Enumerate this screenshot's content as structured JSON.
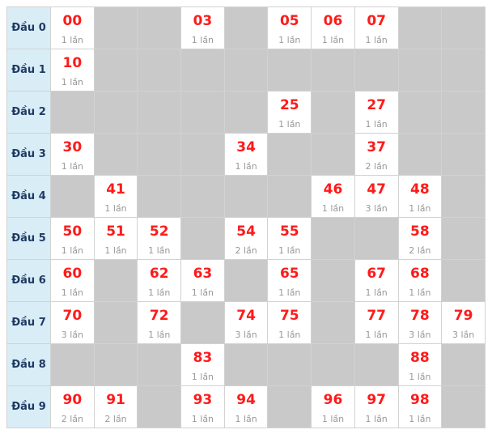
{
  "colors": {
    "number_red": "#ff1a1a",
    "label_bg": "#d9edf7",
    "label_text": "#1f3b63",
    "empty_bg": "#c9c9c9",
    "border": "#d2d2d2",
    "count_text": "#999999",
    "cell_bg": "#ffffff"
  },
  "chart_data": {
    "type": "table",
    "num_columns": 10,
    "row_labels": [
      "Đầu 0",
      "Đầu 1",
      "Đầu 2",
      "Đầu 3",
      "Đầu 4",
      "Đầu 5",
      "Đầu 6",
      "Đầu 7",
      "Đầu 8",
      "Đầu 9"
    ],
    "rows": [
      {
        "label": "Đầu 0",
        "cells": [
          {
            "digit": 0,
            "number": "00",
            "count": "1 lần"
          },
          {
            "digit": 3,
            "number": "03",
            "count": "1 lần"
          },
          {
            "digit": 5,
            "number": "05",
            "count": "1 lần"
          },
          {
            "digit": 6,
            "number": "06",
            "count": "1 lần"
          },
          {
            "digit": 7,
            "number": "07",
            "count": "1 lần"
          }
        ]
      },
      {
        "label": "Đầu 1",
        "cells": [
          {
            "digit": 0,
            "number": "10",
            "count": "1 lần"
          }
        ]
      },
      {
        "label": "Đầu 2",
        "cells": [
          {
            "digit": 5,
            "number": "25",
            "count": "1 lần"
          },
          {
            "digit": 7,
            "number": "27",
            "count": "1 lần"
          }
        ]
      },
      {
        "label": "Đầu 3",
        "cells": [
          {
            "digit": 0,
            "number": "30",
            "count": "1 lần"
          },
          {
            "digit": 4,
            "number": "34",
            "count": "1 lần"
          },
          {
            "digit": 7,
            "number": "37",
            "count": "2 lần"
          }
        ]
      },
      {
        "label": "Đầu 4",
        "cells": [
          {
            "digit": 1,
            "number": "41",
            "count": "1 lần"
          },
          {
            "digit": 6,
            "number": "46",
            "count": "1 lần"
          },
          {
            "digit": 7,
            "number": "47",
            "count": "3 lần"
          },
          {
            "digit": 8,
            "number": "48",
            "count": "1 lần"
          }
        ]
      },
      {
        "label": "Đầu 5",
        "cells": [
          {
            "digit": 0,
            "number": "50",
            "count": "1 lần"
          },
          {
            "digit": 1,
            "number": "51",
            "count": "1 lần"
          },
          {
            "digit": 2,
            "number": "52",
            "count": "1 lần"
          },
          {
            "digit": 4,
            "number": "54",
            "count": "2 lần"
          },
          {
            "digit": 5,
            "number": "55",
            "count": "1 lần"
          },
          {
            "digit": 8,
            "number": "58",
            "count": "2 lần"
          }
        ]
      },
      {
        "label": "Đầu 6",
        "cells": [
          {
            "digit": 0,
            "number": "60",
            "count": "1 lần"
          },
          {
            "digit": 2,
            "number": "62",
            "count": "1 lần"
          },
          {
            "digit": 3,
            "number": "63",
            "count": "1 lần"
          },
          {
            "digit": 5,
            "number": "65",
            "count": "1 lần"
          },
          {
            "digit": 7,
            "number": "67",
            "count": "1 lần"
          },
          {
            "digit": 8,
            "number": "68",
            "count": "1 lần"
          }
        ]
      },
      {
        "label": "Đầu 7",
        "cells": [
          {
            "digit": 0,
            "number": "70",
            "count": "3 lần"
          },
          {
            "digit": 2,
            "number": "72",
            "count": "1 lần"
          },
          {
            "digit": 4,
            "number": "74",
            "count": "3 lần"
          },
          {
            "digit": 5,
            "number": "75",
            "count": "1 lần"
          },
          {
            "digit": 7,
            "number": "77",
            "count": "1 lần"
          },
          {
            "digit": 8,
            "number": "78",
            "count": "3 lần"
          },
          {
            "digit": 9,
            "number": "79",
            "count": "3 lần"
          }
        ]
      },
      {
        "label": "Đầu 8",
        "cells": [
          {
            "digit": 3,
            "number": "83",
            "count": "1 lần"
          },
          {
            "digit": 8,
            "number": "88",
            "count": "1 lần"
          }
        ]
      },
      {
        "label": "Đầu 9",
        "cells": [
          {
            "digit": 0,
            "number": "90",
            "count": "2 lần"
          },
          {
            "digit": 1,
            "number": "91",
            "count": "2 lần"
          },
          {
            "digit": 3,
            "number": "93",
            "count": "1 lần"
          },
          {
            "digit": 4,
            "number": "94",
            "count": "1 lần"
          },
          {
            "digit": 6,
            "number": "96",
            "count": "1 lần"
          },
          {
            "digit": 7,
            "number": "97",
            "count": "1 lần"
          },
          {
            "digit": 8,
            "number": "98",
            "count": "1 lần"
          }
        ]
      }
    ]
  }
}
